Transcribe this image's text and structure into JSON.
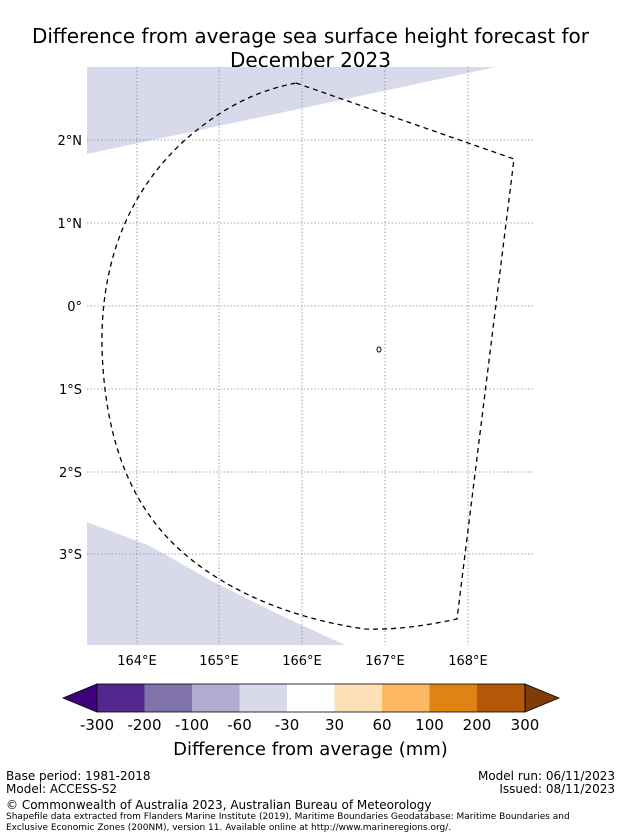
{
  "title_line1": "Difference from average sea surface height forecast for",
  "title_line2": "December 2023",
  "lat_labels": [
    "2°N",
    "1°N",
    "0°",
    "1°S",
    "2°S",
    "3°S"
  ],
  "lon_labels": [
    "164°E",
    "165°E",
    "166°E",
    "167°E",
    "168°E"
  ],
  "colorbar": {
    "ticks": [
      "-300",
      "-200",
      "-100",
      "-60",
      "-30",
      "30",
      "60",
      "100",
      "200",
      "300"
    ],
    "colors": [
      "#3f007d",
      "#54278f",
      "#8073ac",
      "#b2abd2",
      "#d8daeb",
      "#ffffff",
      "#fee0b6",
      "#fdb863",
      "#e08214",
      "#b35806",
      "#7f3b08"
    ],
    "label": "Difference from average (mm)"
  },
  "footer": {
    "base_period": "Base period: 1981-2018",
    "model": "Model: ACCESS-S2",
    "model_run": "Model run: 06/11/2023",
    "issued": "Issued: 08/11/2023",
    "copyright": "© Commonwealth of Australia 2023, Australian Bureau of Meteorology",
    "shapefile_line1": "Shapefile data extracted from Flanders Marine Institute (2019), Maritime Boundaries Geodatabase: Maritime Boundaries and",
    "shapefile_line2": "Exclusive Economic Zones (200NM), version 11. Available online at http://www.marineregions.org/."
  }
}
